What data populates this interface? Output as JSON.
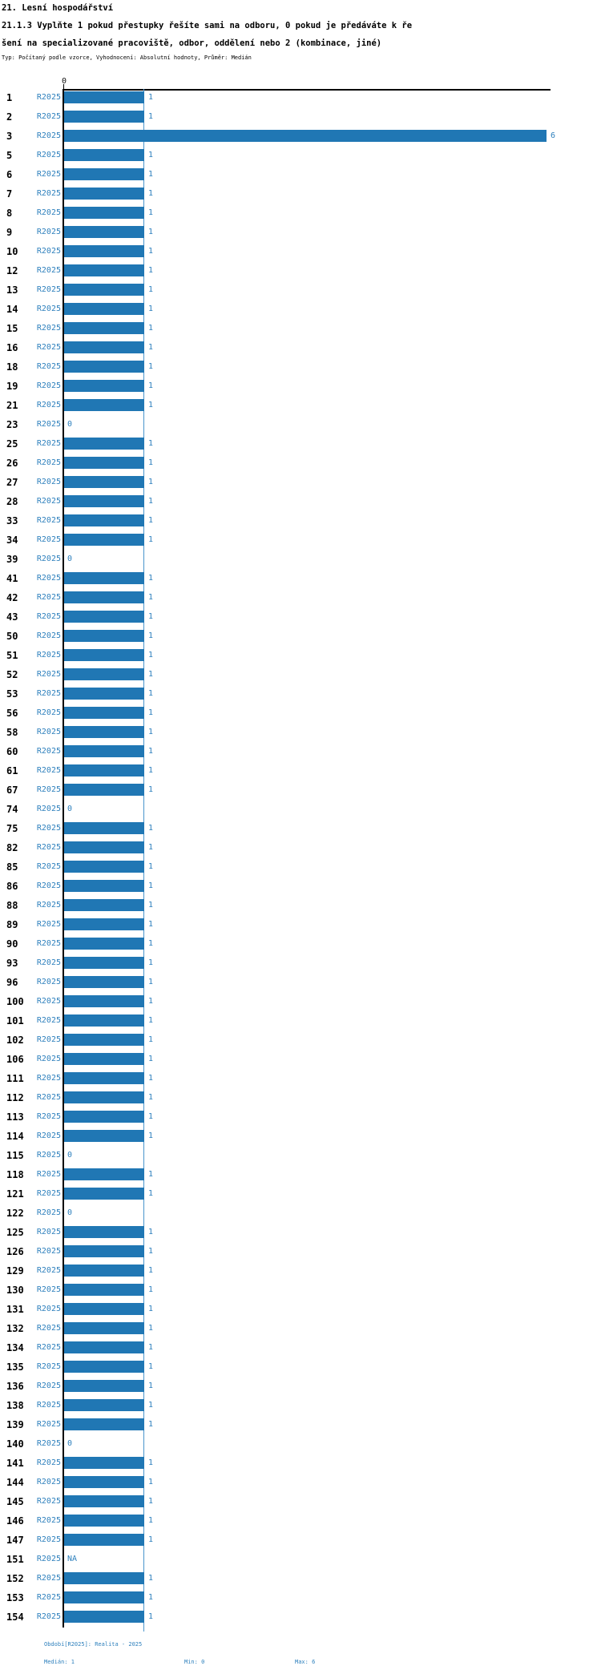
{
  "header": {
    "title": "21. Lesní hospodářství",
    "question_line1": "21.1.3 Vyplňte 1 pokud přestupky řešíte sami na odboru, 0 pokud je předáváte k ře",
    "question_line2": "šení na specializované pracoviště, odbor, oddělení nebo 2 (kombinace, jiné)",
    "meta": "Typ: Počítaný podle vzorce, Vyhodnocení: Absolutní hodnoty, Průměr: Medián"
  },
  "chart_data": {
    "type": "bar",
    "orientation": "horizontal",
    "title": "21.1.3 Vyplňte 1 pokud přestupky řešíte sami na odboru, 0 pokud je předáváte k řešení na specializované pracoviště, odbor, oddělení nebo 2 (kombinace, jiné)",
    "series_label": "R2025",
    "xlim": [
      0,
      6
    ],
    "x_tick_labels": [
      "0"
    ],
    "median_reference_line": 1,
    "grid": false,
    "legend_position": "none",
    "colors": {
      "bar": "#2077b4",
      "label_text": "#2e80bd",
      "median_line": "#4a94cc",
      "axis": "#000000"
    },
    "rows": [
      {
        "id": "1",
        "value": 1
      },
      {
        "id": "2",
        "value": 1
      },
      {
        "id": "3",
        "value": 6
      },
      {
        "id": "5",
        "value": 1
      },
      {
        "id": "6",
        "value": 1
      },
      {
        "id": "7",
        "value": 1
      },
      {
        "id": "8",
        "value": 1
      },
      {
        "id": "9",
        "value": 1
      },
      {
        "id": "10",
        "value": 1
      },
      {
        "id": "12",
        "value": 1
      },
      {
        "id": "13",
        "value": 1
      },
      {
        "id": "14",
        "value": 1
      },
      {
        "id": "15",
        "value": 1
      },
      {
        "id": "16",
        "value": 1
      },
      {
        "id": "18",
        "value": 1
      },
      {
        "id": "19",
        "value": 1
      },
      {
        "id": "21",
        "value": 1
      },
      {
        "id": "23",
        "value": 0
      },
      {
        "id": "25",
        "value": 1
      },
      {
        "id": "26",
        "value": 1
      },
      {
        "id": "27",
        "value": 1
      },
      {
        "id": "28",
        "value": 1
      },
      {
        "id": "33",
        "value": 1
      },
      {
        "id": "34",
        "value": 1
      },
      {
        "id": "39",
        "value": 0
      },
      {
        "id": "41",
        "value": 1
      },
      {
        "id": "42",
        "value": 1
      },
      {
        "id": "43",
        "value": 1
      },
      {
        "id": "50",
        "value": 1
      },
      {
        "id": "51",
        "value": 1
      },
      {
        "id": "52",
        "value": 1
      },
      {
        "id": "53",
        "value": 1
      },
      {
        "id": "56",
        "value": 1
      },
      {
        "id": "58",
        "value": 1
      },
      {
        "id": "60",
        "value": 1
      },
      {
        "id": "61",
        "value": 1
      },
      {
        "id": "67",
        "value": 1
      },
      {
        "id": "74",
        "value": 0
      },
      {
        "id": "75",
        "value": 1
      },
      {
        "id": "82",
        "value": 1
      },
      {
        "id": "85",
        "value": 1
      },
      {
        "id": "86",
        "value": 1
      },
      {
        "id": "88",
        "value": 1
      },
      {
        "id": "89",
        "value": 1
      },
      {
        "id": "90",
        "value": 1
      },
      {
        "id": "93",
        "value": 1
      },
      {
        "id": "96",
        "value": 1
      },
      {
        "id": "100",
        "value": 1
      },
      {
        "id": "101",
        "value": 1
      },
      {
        "id": "102",
        "value": 1
      },
      {
        "id": "106",
        "value": 1
      },
      {
        "id": "111",
        "value": 1
      },
      {
        "id": "112",
        "value": 1
      },
      {
        "id": "113",
        "value": 1
      },
      {
        "id": "114",
        "value": 1
      },
      {
        "id": "115",
        "value": 0
      },
      {
        "id": "118",
        "value": 1
      },
      {
        "id": "121",
        "value": 1
      },
      {
        "id": "122",
        "value": 0
      },
      {
        "id": "125",
        "value": 1
      },
      {
        "id": "126",
        "value": 1
      },
      {
        "id": "129",
        "value": 1
      },
      {
        "id": "130",
        "value": 1
      },
      {
        "id": "131",
        "value": 1
      },
      {
        "id": "132",
        "value": 1
      },
      {
        "id": "134",
        "value": 1
      },
      {
        "id": "135",
        "value": 1
      },
      {
        "id": "136",
        "value": 1
      },
      {
        "id": "138",
        "value": 1
      },
      {
        "id": "139",
        "value": 1
      },
      {
        "id": "140",
        "value": 0
      },
      {
        "id": "141",
        "value": 1
      },
      {
        "id": "144",
        "value": 1
      },
      {
        "id": "145",
        "value": 1
      },
      {
        "id": "146",
        "value": 1
      },
      {
        "id": "147",
        "value": 1
      },
      {
        "id": "151",
        "value": "NA"
      },
      {
        "id": "152",
        "value": 1
      },
      {
        "id": "153",
        "value": 1
      },
      {
        "id": "154",
        "value": 1
      }
    ]
  },
  "axis": {
    "zero_tick": "0"
  },
  "footer": {
    "period": "Období[R2025]: Realita - 2025",
    "median": "Medián: 1",
    "min": "Min: 0",
    "max": "Max: 6"
  }
}
